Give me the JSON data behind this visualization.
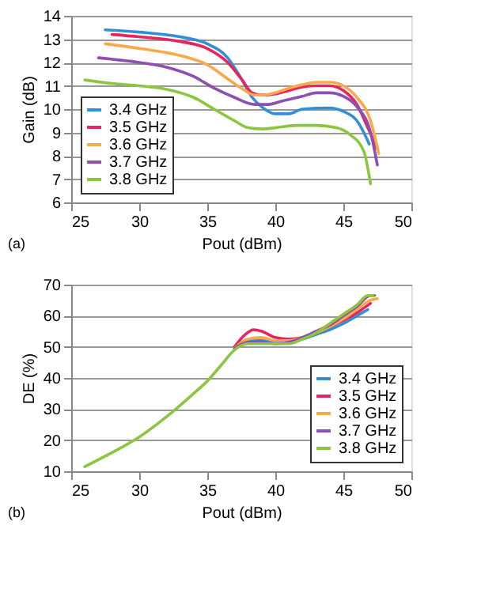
{
  "chart_data": [
    {
      "type": "line",
      "xlabel": "Pout (dBm)",
      "ylabel": "Gain (dB)",
      "annotations": [
        "(a)"
      ],
      "xlim": [
        25,
        50
      ],
      "xticks": [
        25,
        30,
        35,
        40,
        45,
        50
      ],
      "ylim": [
        6,
        14
      ],
      "yticks": [
        6,
        7,
        8,
        9,
        10,
        11,
        12,
        13,
        14
      ],
      "grid": "y",
      "legend": "bottom left",
      "series": [
        {
          "name": "3.4 GHz",
          "color": "#2f8fd8",
          "x": [
            27.5,
            30,
            33,
            35,
            36.5,
            37.5,
            38.3,
            39,
            40,
            41,
            42,
            44,
            45,
            46,
            46.5,
            46.9
          ],
          "values": [
            13.4,
            13.3,
            13.1,
            12.8,
            12.2,
            11.3,
            10.5,
            10.1,
            9.8,
            9.8,
            10.0,
            10.05,
            9.9,
            9.5,
            9.0,
            8.5
          ]
        },
        {
          "name": "3.5 GHz",
          "color": "#e8245e",
          "x": [
            28,
            30,
            33,
            35,
            36.5,
            37.5,
            38.3,
            39,
            40,
            41,
            42,
            43,
            44,
            45,
            46,
            46.8,
            47.5
          ],
          "values": [
            13.2,
            13.1,
            12.9,
            12.6,
            12.0,
            11.3,
            10.7,
            10.6,
            10.65,
            10.8,
            10.95,
            11.0,
            11.0,
            10.8,
            10.2,
            9.2,
            8.3
          ]
        },
        {
          "name": "3.6 GHz",
          "color": "#f9a84a",
          "x": [
            27.5,
            30,
            33,
            35,
            36.5,
            37.5,
            38.5,
            39,
            40,
            41,
            42,
            43,
            44,
            45,
            46,
            47,
            47.6
          ],
          "values": [
            12.8,
            12.6,
            12.3,
            11.9,
            11.3,
            10.9,
            10.6,
            10.6,
            10.7,
            10.9,
            11.05,
            11.15,
            11.15,
            11.0,
            10.5,
            9.5,
            8.1
          ]
        },
        {
          "name": "3.7 GHz",
          "color": "#8e4fb0",
          "x": [
            27,
            30,
            32,
            34,
            35.5,
            37,
            38.5,
            39.5,
            40.5,
            42,
            43,
            44,
            45,
            46,
            47,
            47.5
          ],
          "values": [
            12.2,
            12.0,
            11.8,
            11.4,
            10.9,
            10.5,
            10.2,
            10.2,
            10.35,
            10.55,
            10.7,
            10.7,
            10.55,
            10.1,
            9.0,
            7.6
          ]
        },
        {
          "name": "3.8 GHz",
          "color": "#8cc63f",
          "x": [
            26,
            28,
            30,
            32,
            34,
            35.5,
            37,
            38,
            39,
            40,
            41.5,
            43,
            44.5,
            45.5,
            46.5,
            47
          ],
          "values": [
            11.25,
            11.1,
            11.0,
            10.85,
            10.5,
            10.0,
            9.5,
            9.2,
            9.15,
            9.2,
            9.3,
            9.3,
            9.2,
            8.9,
            8.2,
            6.8
          ]
        }
      ]
    },
    {
      "type": "line",
      "xlabel": "Pout (dBm)",
      "ylabel": "DE (%)",
      "annotations": [
        "(b)"
      ],
      "xlim": [
        25,
        50
      ],
      "xticks": [
        25,
        30,
        35,
        40,
        45,
        50
      ],
      "ylim": [
        10,
        70
      ],
      "yticks": [
        10,
        20,
        30,
        40,
        50,
        60,
        70
      ],
      "grid": "y",
      "legend": "bottom right",
      "series": [
        {
          "name": "3.4 GHz",
          "color": "#2f8fd8",
          "x": [
            37,
            38,
            39,
            40,
            41,
            42,
            43,
            44,
            45,
            46,
            46.8
          ],
          "values": [
            49.5,
            52,
            52,
            51.5,
            52,
            52.5,
            54,
            55.5,
            57.5,
            60,
            62
          ]
        },
        {
          "name": "3.5 GHz",
          "color": "#e8245e",
          "x": [
            37,
            37.8,
            38.4,
            39,
            40,
            41,
            42,
            43,
            44,
            45,
            46,
            47
          ],
          "values": [
            50,
            54,
            55.5,
            55,
            53,
            52.5,
            53,
            54.5,
            56.5,
            58.5,
            61,
            64
          ]
        },
        {
          "name": "3.6 GHz",
          "color": "#f9a84a",
          "x": [
            37,
            38,
            39,
            40,
            41,
            42,
            43,
            44,
            45,
            46,
            47,
            47.5
          ],
          "values": [
            49.5,
            52.5,
            53,
            52,
            52,
            53,
            54.5,
            56.5,
            59,
            62,
            65,
            65.5
          ]
        },
        {
          "name": "3.7 GHz",
          "color": "#8e4fb0",
          "x": [
            37,
            38,
            39,
            40,
            41,
            42,
            43,
            44,
            45,
            46,
            47,
            47.3
          ],
          "values": [
            49.5,
            51.5,
            51.5,
            51,
            51.5,
            53,
            55,
            57,
            60,
            63,
            66.5,
            66.5
          ]
        },
        {
          "name": "3.8 GHz",
          "color": "#8cc63f",
          "x": [
            26,
            28,
            30,
            32,
            34,
            35,
            36,
            37,
            38,
            39,
            40,
            41,
            42,
            43,
            44,
            45,
            46,
            46.8,
            47.2
          ],
          "values": [
            11.5,
            16,
            21,
            27.5,
            35,
            39,
            44,
            49,
            51,
            51,
            51,
            51,
            52.5,
            54.5,
            57.5,
            60.5,
            63.5,
            66.5,
            66.5
          ]
        }
      ]
    }
  ]
}
